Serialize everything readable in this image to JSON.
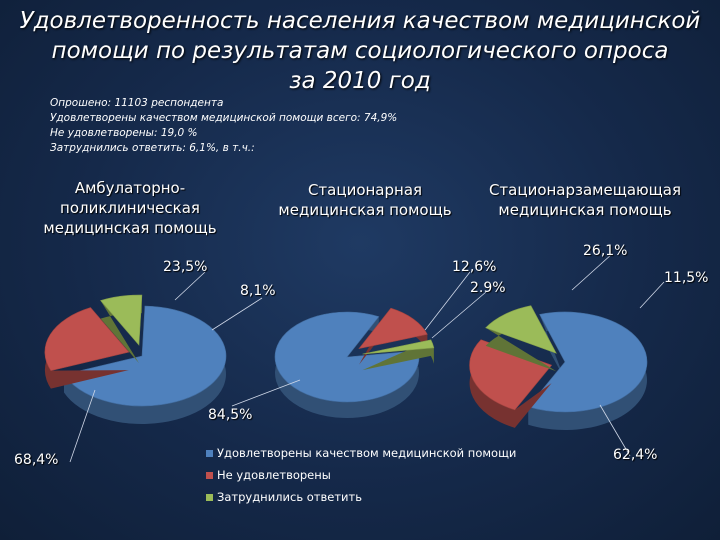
{
  "title": {
    "line1": "Удовлетворенность населения качеством медицинской",
    "line2": "помощи по результатам социологического опроса",
    "line3": "за 2010 год"
  },
  "stats": {
    "line1": "Опрошено: 11103 респондента",
    "line2": "Удовлетворены качеством медицинской помощи всего: 74,9%",
    "line3": "Не удовлетворены: 19,0 %",
    "line4": "Затруднились ответить: 6,1%, в т.ч.:"
  },
  "colors": {
    "satisfied": "#4f81bd",
    "unsatisfied": "#c0504d",
    "difficult": "#9bbb59"
  },
  "chart_data": [
    {
      "type": "pie",
      "title_lines": [
        "Амбулаторно-",
        "поликлиническая",
        "медицинская помощь"
      ],
      "categories": [
        "Удовлетворены качеством медицинской помощи",
        "Не удовлетворены",
        "Затруднились ответить"
      ],
      "values": [
        68.4,
        23.5,
        8.1
      ],
      "data_labels": [
        "68,4%",
        "23,5%",
        "8,1%"
      ]
    },
    {
      "type": "pie",
      "title_lines": [
        "Стационарная",
        "медицинская помощь"
      ],
      "categories": [
        "Удовлетворены качеством медицинской помощи",
        "Не удовлетворены",
        "Затруднились ответить"
      ],
      "values": [
        84.5,
        12.6,
        2.9
      ],
      "data_labels": [
        "84,5%",
        "12,6%",
        "2.9%"
      ]
    },
    {
      "type": "pie",
      "title_lines": [
        "Стационарзамещающая",
        "медицинская помощь"
      ],
      "categories": [
        "Удовлетворены качеством медицинской помощи",
        "Не удовлетворены",
        "Затруднились ответить"
      ],
      "values": [
        62.4,
        26.1,
        11.5
      ],
      "data_labels": [
        "62,4%",
        "26,1%",
        "11,5%"
      ]
    }
  ],
  "legend": {
    "items": [
      "Удовлетворены качеством медицинской помощи",
      "Не удовлетворены",
      "Затруднились ответить"
    ],
    "position": "bottom-center"
  }
}
